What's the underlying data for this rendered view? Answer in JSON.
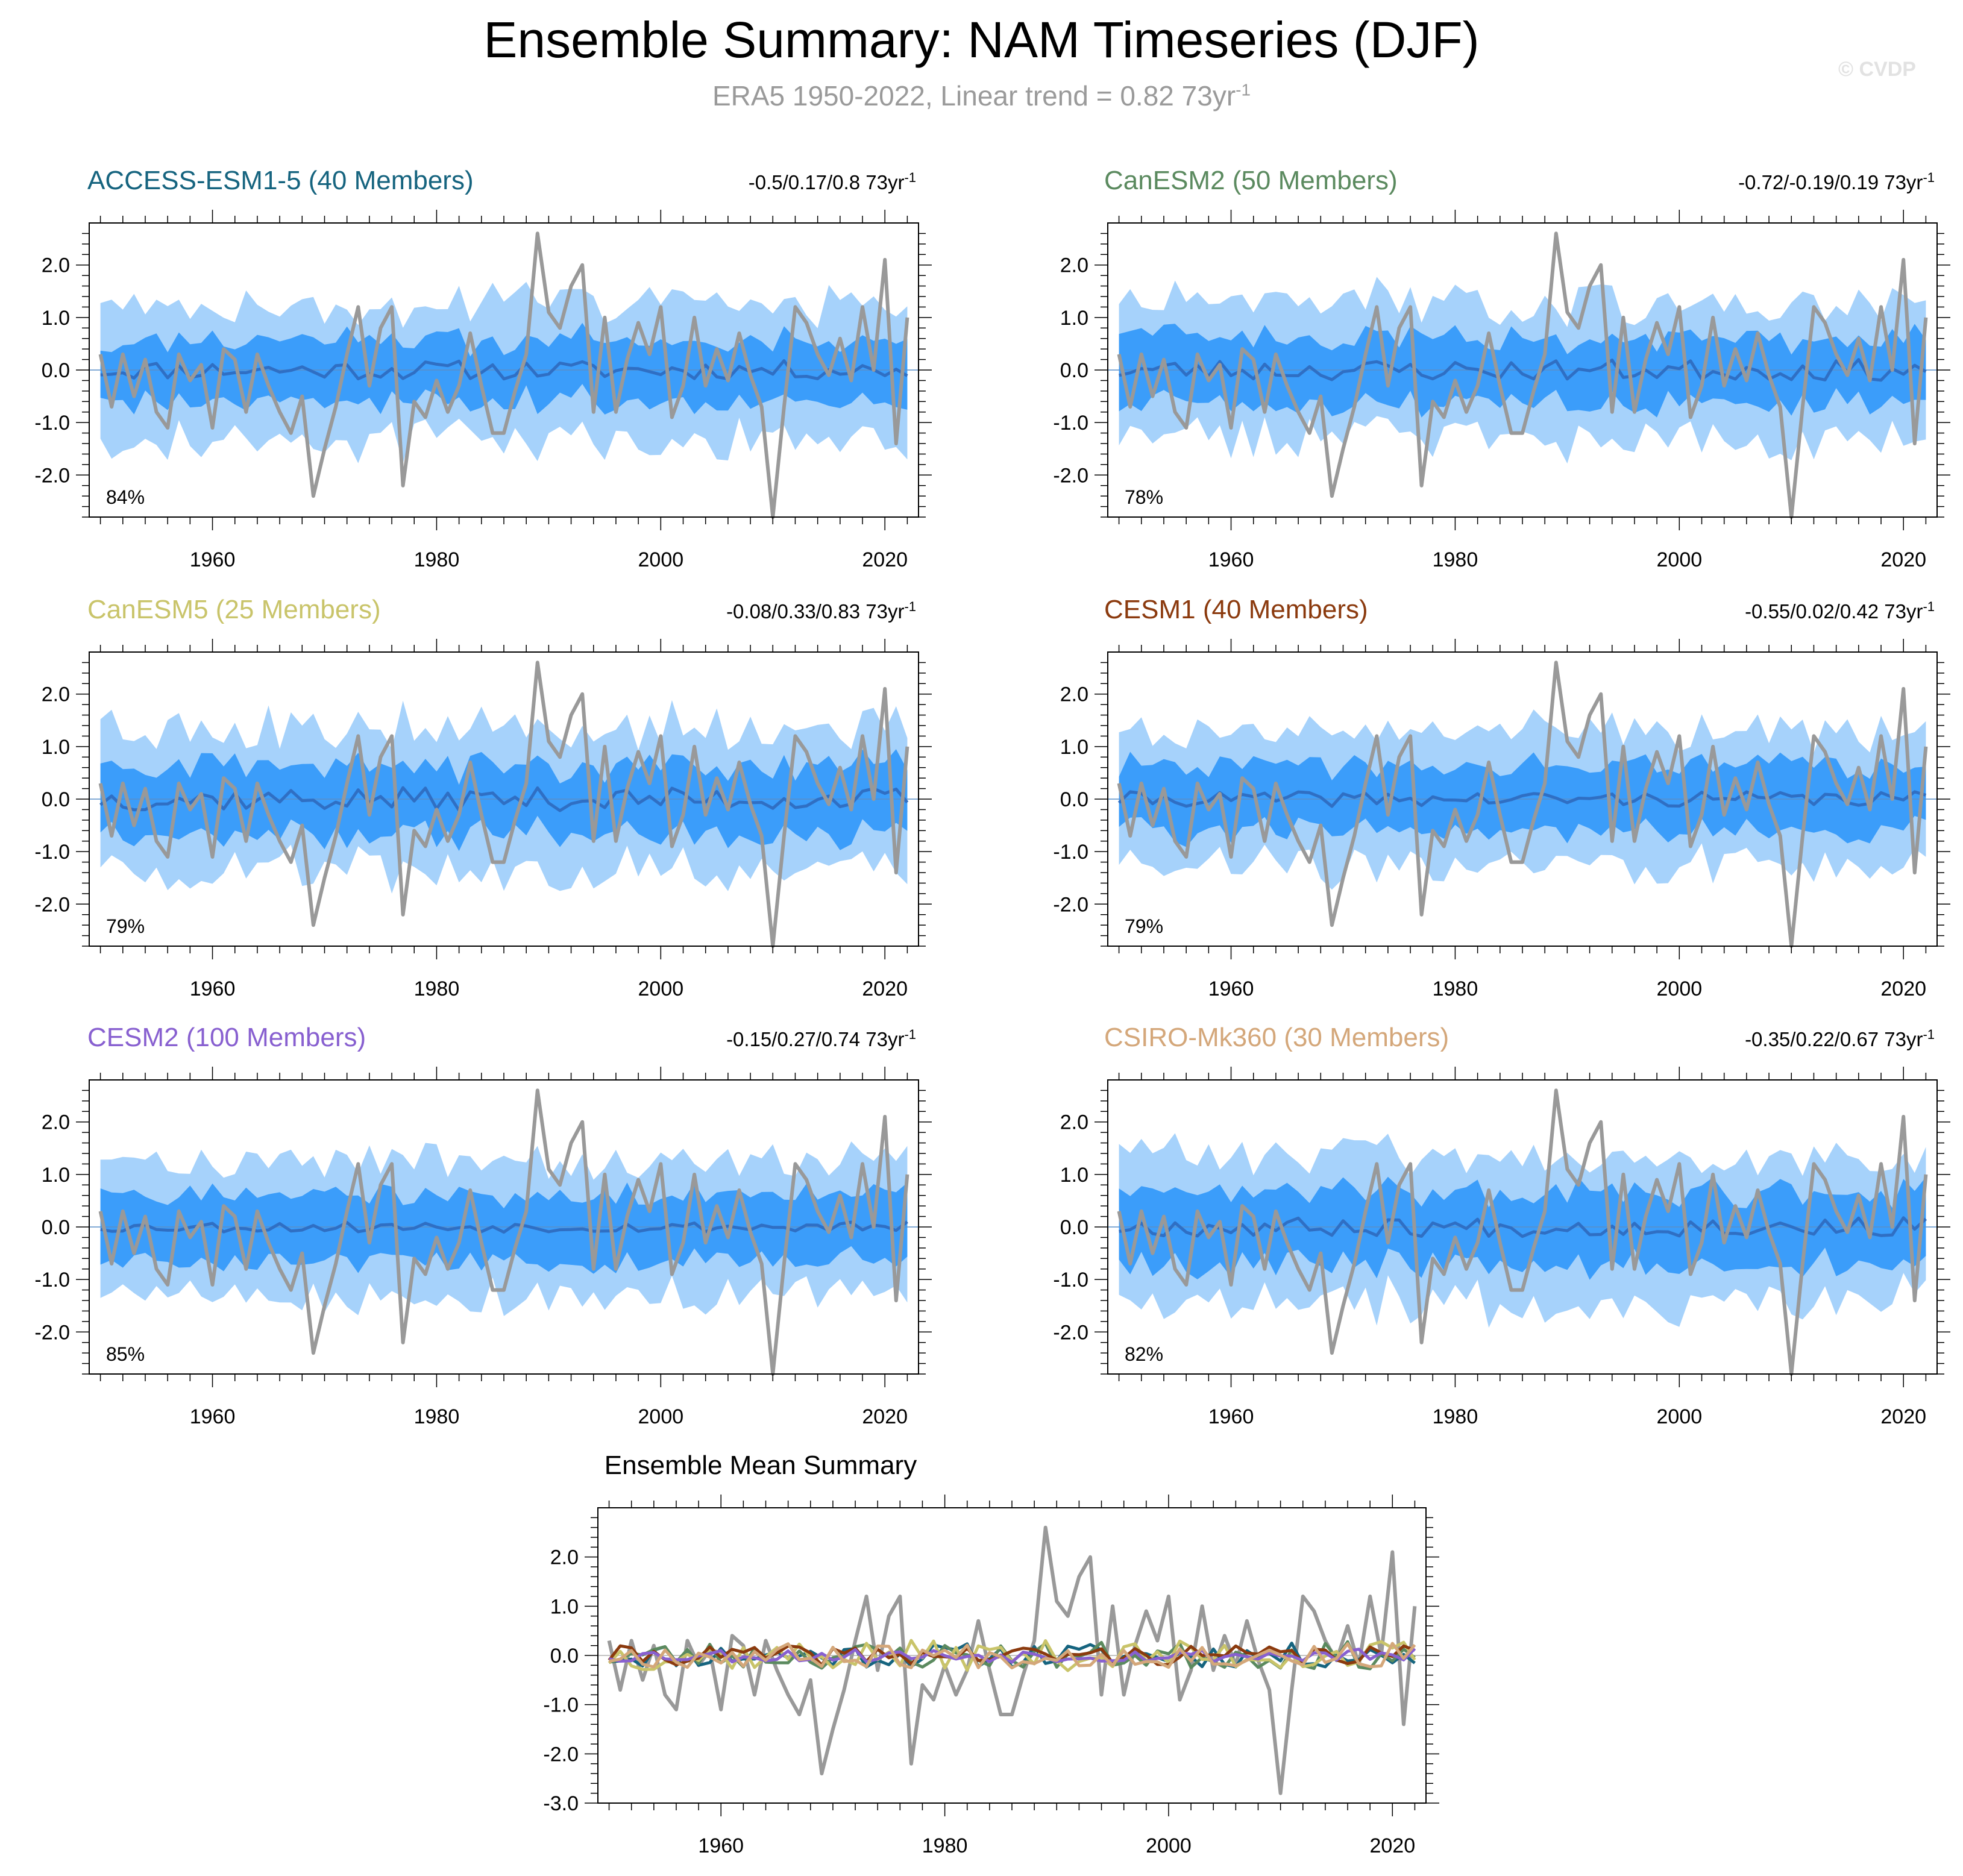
{
  "title": "Ensemble Summary: NAM Timeseries (DJF)",
  "subtitle": "ERA5 1950-2022, Linear trend = 0.82 73yr",
  "subtitle_sup": "-1",
  "copyright": "© CVDP",
  "chart_data": [
    {
      "type": "area",
      "title": "ACCESS-ESM1-5 (40 Members)",
      "title_color": "#16647f",
      "trend_range": "-0.5/0.17/0.8 73yr",
      "pct": "84%",
      "seed": 11,
      "outer_width": 1.2,
      "inner_width": 0.55,
      "mean_scale": 0.18,
      "xlim": [
        1949,
        2023
      ],
      "ylim": [
        -2.8,
        2.8
      ],
      "x_ticks": [
        1960,
        1980,
        2000,
        2020
      ],
      "y_ticks": [
        "2.0",
        "1.0",
        "0.0",
        "-1.0",
        "-2.0"
      ],
      "y_tick_values": [
        2,
        1,
        0,
        -1,
        -2
      ]
    },
    {
      "type": "area",
      "title": "CanESM2 (50 Members)",
      "title_color": "#5b8a5f",
      "trend_range": "-0.72/-0.19/0.19 73yr",
      "pct": "78%",
      "seed": 23,
      "outer_width": 1.2,
      "inner_width": 0.6,
      "mean_scale": 0.2,
      "xlim": [
        1949,
        2023
      ],
      "ylim": [
        -2.8,
        2.8
      ],
      "x_ticks": [
        1960,
        1980,
        2000,
        2020
      ],
      "y_ticks": [
        "2.0",
        "1.0",
        "0.0",
        "-1.0",
        "-2.0"
      ],
      "y_tick_values": [
        2,
        1,
        0,
        -1,
        -2
      ]
    },
    {
      "type": "area",
      "title": "CanESM5 (25 Members)",
      "title_color": "#c9c46a",
      "trend_range": "-0.08/0.33/0.83 73yr",
      "pct": "79%",
      "seed": 37,
      "outer_width": 1.25,
      "inner_width": 0.62,
      "mean_scale": 0.22,
      "xlim": [
        1949,
        2023
      ],
      "ylim": [
        -2.8,
        2.8
      ],
      "x_ticks": [
        1960,
        1980,
        2000,
        2020
      ],
      "y_ticks": [
        "2.0",
        "1.0",
        "0.0",
        "-1.0",
        "-2.0"
      ],
      "y_tick_values": [
        2,
        1,
        0,
        -1,
        -2
      ]
    },
    {
      "type": "area",
      "title": "CESM1 (40 Members)",
      "title_color": "#8b3a0e",
      "trend_range": "-0.55/0.02/0.42 73yr",
      "pct": "79%",
      "seed": 41,
      "outer_width": 1.2,
      "inner_width": 0.6,
      "mean_scale": 0.14,
      "xlim": [
        1949,
        2023
      ],
      "ylim": [
        -2.8,
        2.8
      ],
      "x_ticks": [
        1960,
        1980,
        2000,
        2020
      ],
      "y_ticks": [
        "2.0",
        "1.0",
        "0.0",
        "-1.0",
        "-2.0"
      ],
      "y_tick_values": [
        2,
        1,
        0,
        -1,
        -2
      ]
    },
    {
      "type": "area",
      "title": "CESM2 (100 Members)",
      "title_color": "#8860d0",
      "trend_range": "-0.15/0.27/0.74 73yr",
      "pct": "85%",
      "seed": 53,
      "outer_width": 1.2,
      "inner_width": 0.6,
      "mean_scale": 0.1,
      "xlim": [
        1949,
        2023
      ],
      "ylim": [
        -2.8,
        2.8
      ],
      "x_ticks": [
        1960,
        1980,
        2000,
        2020
      ],
      "y_ticks": [
        "2.0",
        "1.0",
        "0.0",
        "-1.0",
        "-2.0"
      ],
      "y_tick_values": [
        2,
        1,
        0,
        -1,
        -2
      ]
    },
    {
      "type": "area",
      "title": "CSIRO-Mk360 (30 Members)",
      "title_color": "#d4a77a",
      "trend_range": "-0.35/0.22/0.67 73yr",
      "pct": "82%",
      "seed": 67,
      "outer_width": 1.3,
      "inner_width": 0.65,
      "mean_scale": 0.18,
      "xlim": [
        1949,
        2023
      ],
      "ylim": [
        -2.8,
        2.8
      ],
      "x_ticks": [
        1960,
        1980,
        2000,
        2020
      ],
      "y_ticks": [
        "2.0",
        "1.0",
        "0.0",
        "-1.0",
        "-2.0"
      ],
      "y_tick_values": [
        2,
        1,
        0,
        -1,
        -2
      ]
    },
    {
      "type": "line",
      "title": "Ensemble Mean Summary",
      "xlim": [
        1949,
        2023
      ],
      "ylim": [
        -3.0,
        3.0
      ],
      "x_ticks": [
        1960,
        1980,
        2000,
        2020
      ],
      "y_ticks": [
        "2.0",
        "1.0",
        "0.0",
        "-1.0",
        "-2.0",
        "-3.0"
      ],
      "y_tick_values": [
        2,
        1,
        0,
        -1,
        -2,
        -3
      ],
      "series_colors": [
        "#16647f",
        "#5b8a5f",
        "#c9c46a",
        "#8b3a0e",
        "#8860d0",
        "#d4a77a"
      ]
    }
  ],
  "era5": {
    "years": [
      1950,
      1951,
      1952,
      1953,
      1954,
      1955,
      1956,
      1957,
      1958,
      1959,
      1960,
      1961,
      1962,
      1963,
      1964,
      1965,
      1966,
      1967,
      1968,
      1969,
      1970,
      1971,
      1972,
      1973,
      1974,
      1975,
      1976,
      1977,
      1978,
      1979,
      1980,
      1981,
      1982,
      1983,
      1984,
      1985,
      1986,
      1987,
      1988,
      1989,
      1990,
      1991,
      1992,
      1993,
      1994,
      1995,
      1996,
      1997,
      1998,
      1999,
      2000,
      2001,
      2002,
      2003,
      2004,
      2005,
      2006,
      2007,
      2008,
      2009,
      2010,
      2011,
      2012,
      2013,
      2014,
      2015,
      2016,
      2017,
      2018,
      2019,
      2020,
      2021,
      2022
    ],
    "values": [
      0.3,
      -0.7,
      0.3,
      -0.5,
      0.2,
      -0.8,
      -1.1,
      0.3,
      -0.2,
      0.1,
      -1.1,
      0.4,
      0.2,
      -0.8,
      0.3,
      -0.3,
      -0.8,
      -1.2,
      -0.5,
      -2.4,
      -1.5,
      -0.7,
      0.3,
      1.2,
      -0.3,
      0.8,
      1.2,
      -2.2,
      -0.6,
      -0.9,
      -0.2,
      -0.8,
      -0.3,
      0.7,
      -0.3,
      -1.2,
      -1.2,
      -0.4,
      0.3,
      2.6,
      1.1,
      0.8,
      1.6,
      2.0,
      -0.8,
      1.0,
      -0.8,
      0.2,
      0.9,
      0.3,
      1.2,
      -0.9,
      -0.3,
      1.0,
      -0.3,
      0.4,
      -0.2,
      0.7,
      -0.1,
      -0.7,
      -2.8,
      -0.7,
      1.2,
      0.9,
      0.3,
      -0.1,
      0.6,
      -0.2,
      1.2,
      0.0,
      2.1,
      -1.4,
      1.0
    ]
  }
}
